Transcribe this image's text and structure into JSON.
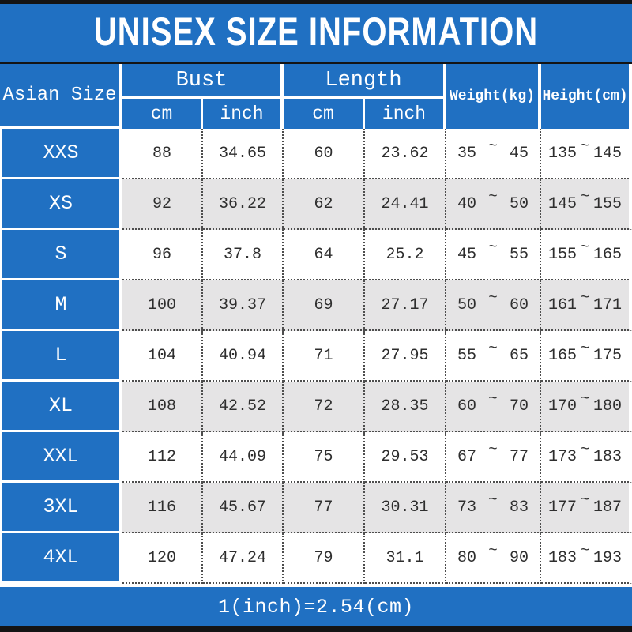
{
  "title": "UNISEX SIZE INFORMATION",
  "header": {
    "asian_size": "Asian Size",
    "bust": "Bust",
    "length": "Length",
    "bust_cm": "cm",
    "bust_inch": "inch",
    "length_cm": "cm",
    "length_inch": "inch",
    "weight": "Weight(kg)",
    "height": "Height(cm)"
  },
  "range_separator": "~",
  "rows": [
    {
      "size": "XXS",
      "bust_cm": "88",
      "bust_inch": "34.65",
      "length_cm": "60",
      "length_inch": "23.62",
      "weight_min": "35",
      "weight_max": "45",
      "height_min": "135",
      "height_max": "145"
    },
    {
      "size": "XS",
      "bust_cm": "92",
      "bust_inch": "36.22",
      "length_cm": "62",
      "length_inch": "24.41",
      "weight_min": "40",
      "weight_max": "50",
      "height_min": "145",
      "height_max": "155"
    },
    {
      "size": "S",
      "bust_cm": "96",
      "bust_inch": "37.8",
      "length_cm": "64",
      "length_inch": "25.2",
      "weight_min": "45",
      "weight_max": "55",
      "height_min": "155",
      "height_max": "165"
    },
    {
      "size": "M",
      "bust_cm": "100",
      "bust_inch": "39.37",
      "length_cm": "69",
      "length_inch": "27.17",
      "weight_min": "50",
      "weight_max": "60",
      "height_min": "161",
      "height_max": "171"
    },
    {
      "size": "L",
      "bust_cm": "104",
      "bust_inch": "40.94",
      "length_cm": "71",
      "length_inch": "27.95",
      "weight_min": "55",
      "weight_max": "65",
      "height_min": "165",
      "height_max": "175"
    },
    {
      "size": "XL",
      "bust_cm": "108",
      "bust_inch": "42.52",
      "length_cm": "72",
      "length_inch": "28.35",
      "weight_min": "60",
      "weight_max": "70",
      "height_min": "170",
      "height_max": "180"
    },
    {
      "size": "XXL",
      "bust_cm": "112",
      "bust_inch": "44.09",
      "length_cm": "75",
      "length_inch": "29.53",
      "weight_min": "67",
      "weight_max": "77",
      "height_min": "173",
      "height_max": "183"
    },
    {
      "size": "3XL",
      "bust_cm": "116",
      "bust_inch": "45.67",
      "length_cm": "77",
      "length_inch": "30.31",
      "weight_min": "73",
      "weight_max": "83",
      "height_min": "177",
      "height_max": "187"
    },
    {
      "size": "4XL",
      "bust_cm": "120",
      "bust_inch": "47.24",
      "length_cm": "79",
      "length_inch": "31.1",
      "weight_min": "80",
      "weight_max": "90",
      "height_min": "183",
      "height_max": "193"
    }
  ],
  "footer_note": "1(inch)=2.54(cm)",
  "colors": {
    "accent_blue": "#2070c2",
    "alt_row_gray": "#e5e4e5",
    "row_white": "#ffffff",
    "bar_black": "#141414",
    "data_text": "#2e2e2e",
    "header_text": "#ffffff"
  },
  "chart_data": {
    "type": "table",
    "title": "UNISEX SIZE INFORMATION",
    "columns": [
      "Asian Size",
      "Bust cm",
      "Bust inch",
      "Length cm",
      "Length inch",
      "Weight(kg)",
      "Height(cm)"
    ],
    "rows": [
      [
        "XXS",
        "88",
        "34.65",
        "60",
        "23.62",
        "35~45",
        "135~145"
      ],
      [
        "XS",
        "92",
        "36.22",
        "62",
        "24.41",
        "40~50",
        "145~155"
      ],
      [
        "S",
        "96",
        "37.8",
        "64",
        "25.2",
        "45~55",
        "155~165"
      ],
      [
        "M",
        "100",
        "39.37",
        "69",
        "27.17",
        "50~60",
        "161~171"
      ],
      [
        "L",
        "104",
        "40.94",
        "71",
        "27.95",
        "55~65",
        "165~175"
      ],
      [
        "XL",
        "108",
        "42.52",
        "72",
        "28.35",
        "60~70",
        "170~180"
      ],
      [
        "XXL",
        "112",
        "44.09",
        "75",
        "29.53",
        "67~77",
        "173~183"
      ],
      [
        "3XL",
        "116",
        "45.67",
        "77",
        "30.31",
        "73~83",
        "177~187"
      ],
      [
        "4XL",
        "120",
        "47.24",
        "79",
        "31.1",
        "80~90",
        "183~193"
      ]
    ],
    "note": "1(inch)=2.54(cm)",
    "layout": "header row spans: Bust and Length each split into cm/inch sub-columns; Weight and Height span both header rows; alternating white/gray data rows; blue size column"
  }
}
